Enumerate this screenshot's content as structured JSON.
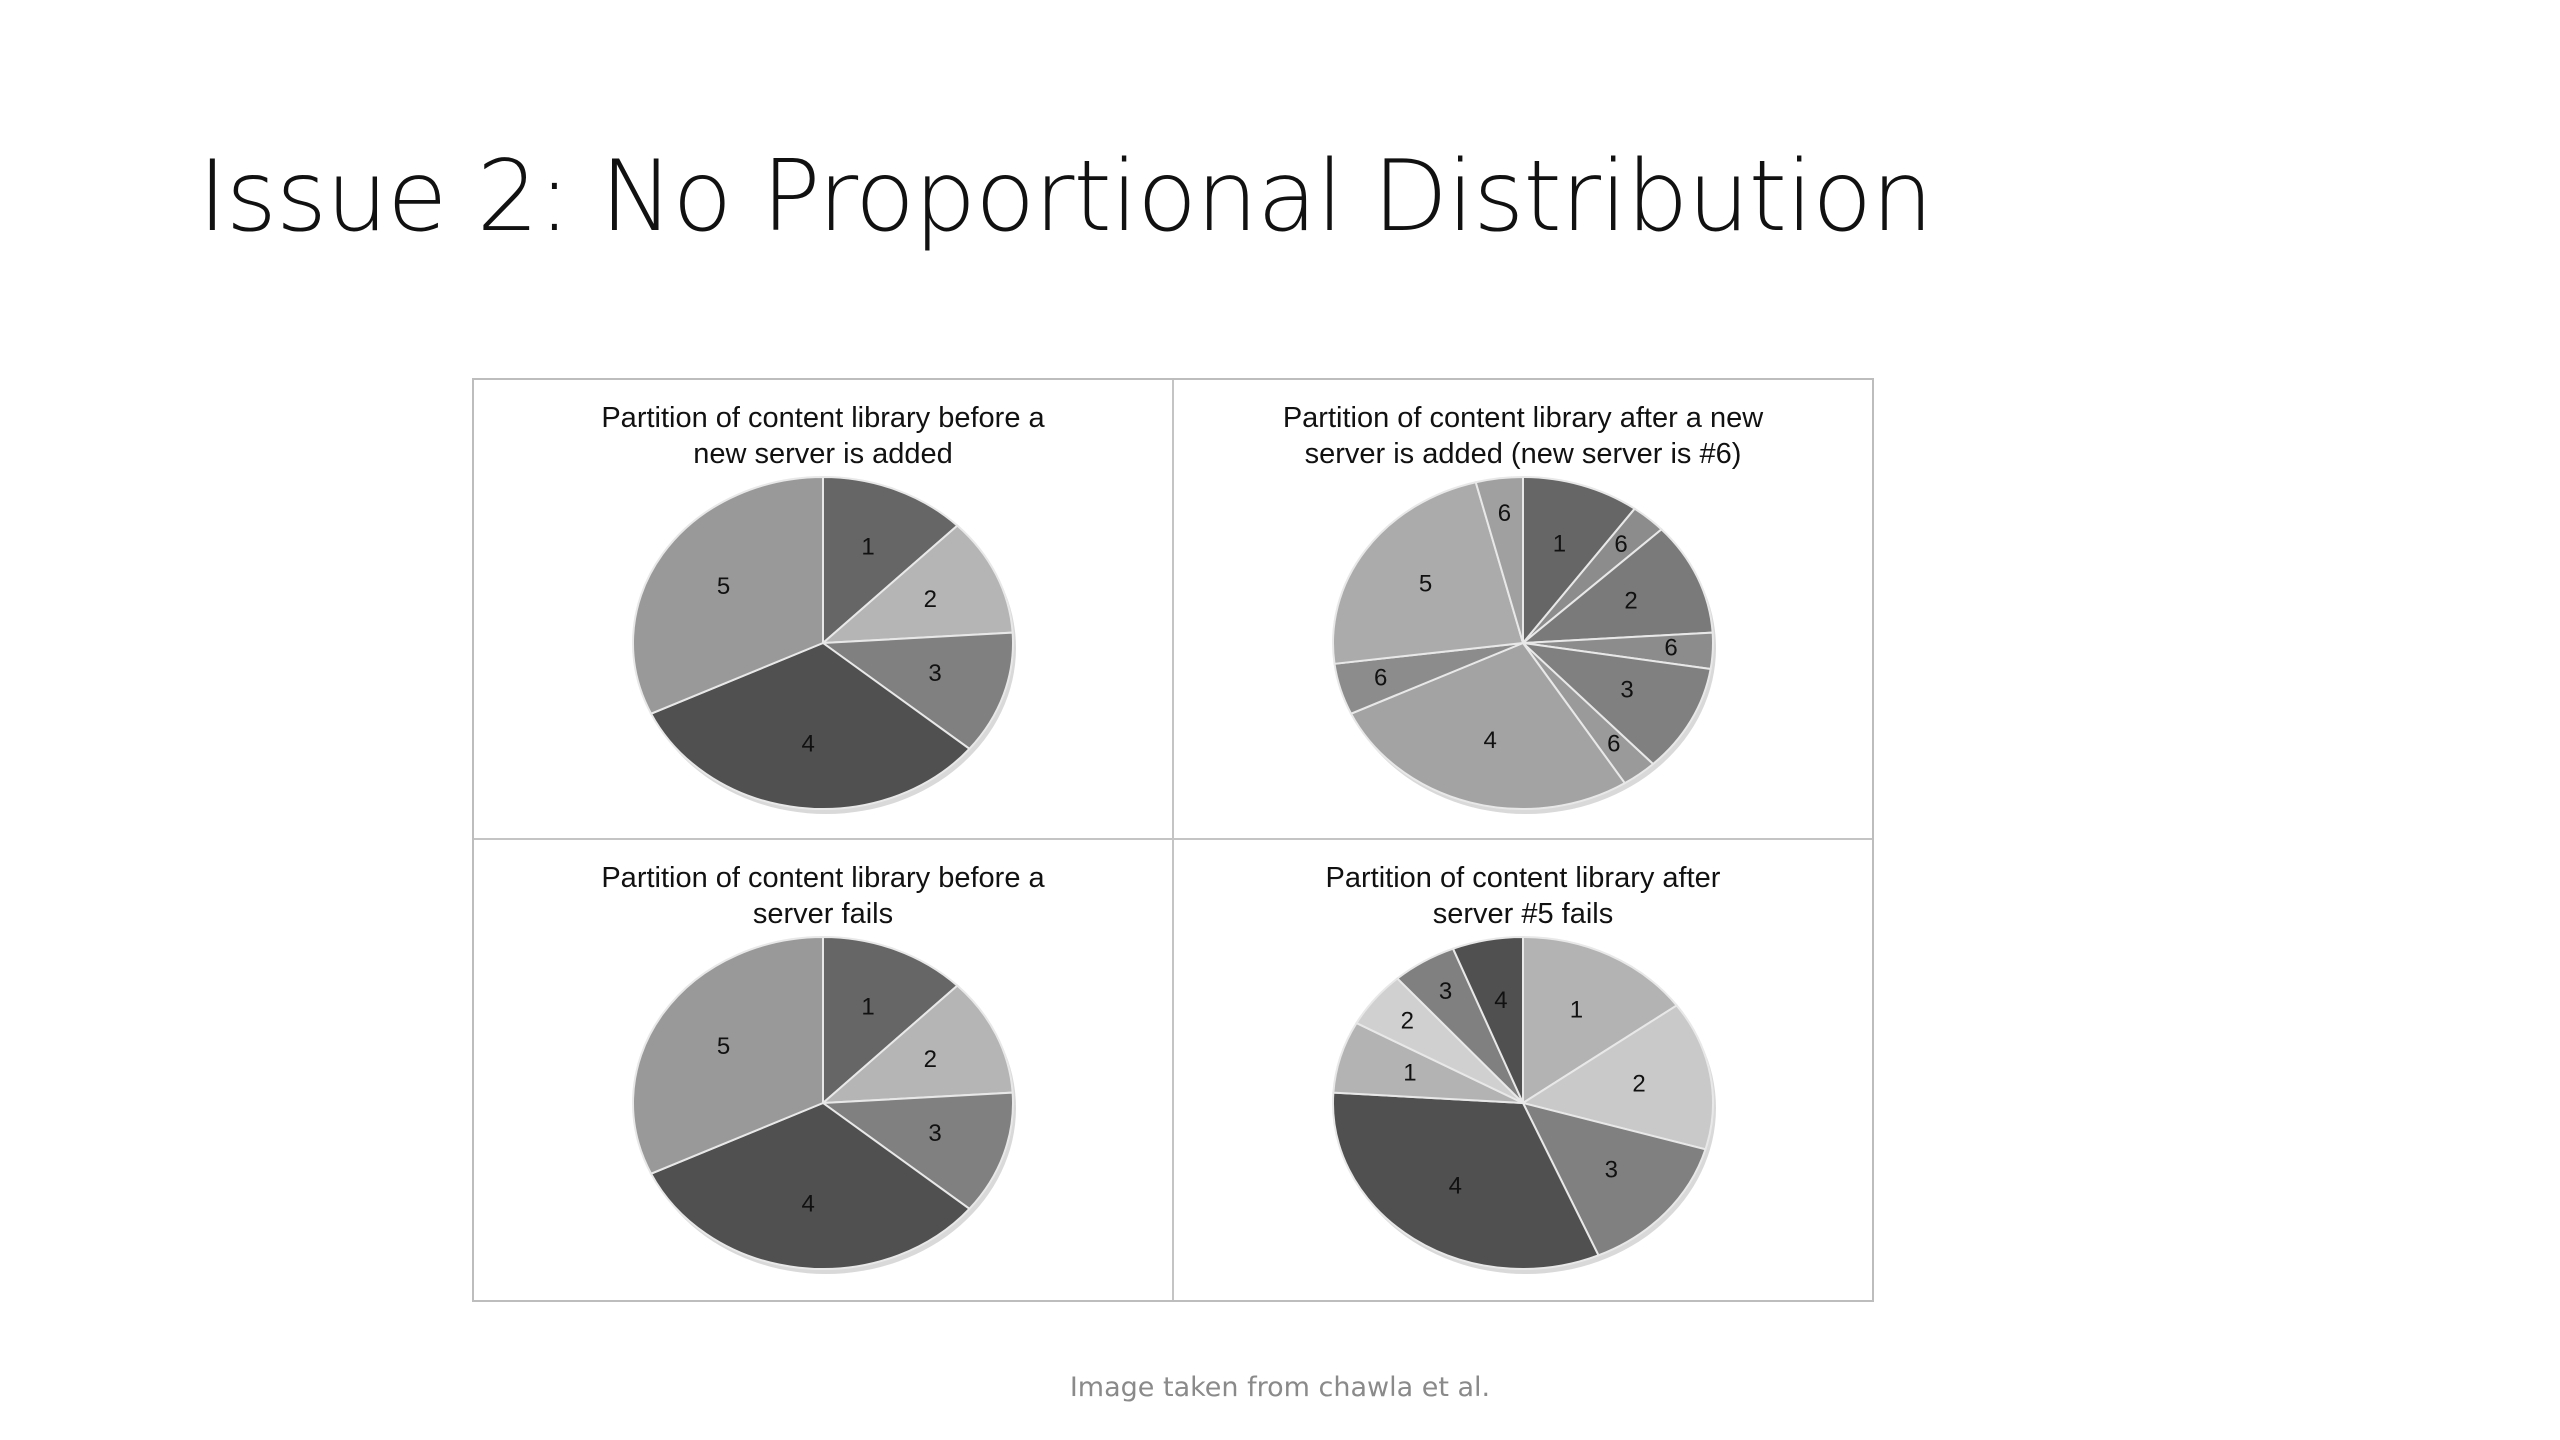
{
  "slide": {
    "title": "Issue 2: No Proportional Distribution",
    "caption": "Image taken from chawla et al."
  },
  "chart_data": [
    {
      "type": "pie",
      "title": "Partition of content library before a\nnew server is added",
      "slices": [
        {
          "label": "1",
          "value": 12.5,
          "color": "#666666"
        },
        {
          "label": "2",
          "value": 11.5,
          "color": "#b5b5b5"
        },
        {
          "label": "3",
          "value": 12.0,
          "color": "#808080"
        },
        {
          "label": "4",
          "value": 32.0,
          "color": "#505050"
        },
        {
          "label": "5",
          "value": 32.0,
          "color": "#999999"
        }
      ]
    },
    {
      "type": "pie",
      "title": "Partition of content library after a new\nserver is added (new server is #6)",
      "slices": [
        {
          "label": "1",
          "value": 10.0,
          "color": "#666666"
        },
        {
          "label": "6",
          "value": 3.0,
          "color": "#8c8c8c"
        },
        {
          "label": "2",
          "value": 11.0,
          "color": "#7a7a7a"
        },
        {
          "label": "6",
          "value": 3.5,
          "color": "#8c8c8c"
        },
        {
          "label": "3",
          "value": 10.5,
          "color": "#808080"
        },
        {
          "label": "6",
          "value": 3.0,
          "color": "#9a9a9a"
        },
        {
          "label": "4",
          "value": 27.0,
          "color": "#a3a3a3"
        },
        {
          "label": "6",
          "value": 5.0,
          "color": "#8c8c8c"
        },
        {
          "label": "5",
          "value": 23.0,
          "color": "#ababab"
        },
        {
          "label": "6",
          "value": 4.0,
          "color": "#a0a0a0"
        }
      ]
    },
    {
      "type": "pie",
      "title": "Partition of content library before a\nserver fails",
      "slices": [
        {
          "label": "1",
          "value": 12.5,
          "color": "#666666"
        },
        {
          "label": "2",
          "value": 11.5,
          "color": "#b5b5b5"
        },
        {
          "label": "3",
          "value": 12.0,
          "color": "#808080"
        },
        {
          "label": "4",
          "value": 32.0,
          "color": "#505050"
        },
        {
          "label": "5",
          "value": 32.0,
          "color": "#999999"
        }
      ]
    },
    {
      "type": "pie",
      "title": "Partition of content library after\nserver #5 fails",
      "slices": [
        {
          "label": "1",
          "value": 15.0,
          "color": "#b3b3b3"
        },
        {
          "label": "2",
          "value": 14.5,
          "color": "#c9c9c9"
        },
        {
          "label": "3",
          "value": 14.0,
          "color": "#808080"
        },
        {
          "label": "4",
          "value": 32.5,
          "color": "#505050"
        },
        {
          "label": "1",
          "value": 7.0,
          "color": "#b3b3b3"
        },
        {
          "label": "2",
          "value": 5.5,
          "color": "#d0d0d0"
        },
        {
          "label": "3",
          "value": 5.5,
          "color": "#808080"
        },
        {
          "label": "4",
          "value": 6.0,
          "color": "#505050"
        }
      ]
    }
  ]
}
